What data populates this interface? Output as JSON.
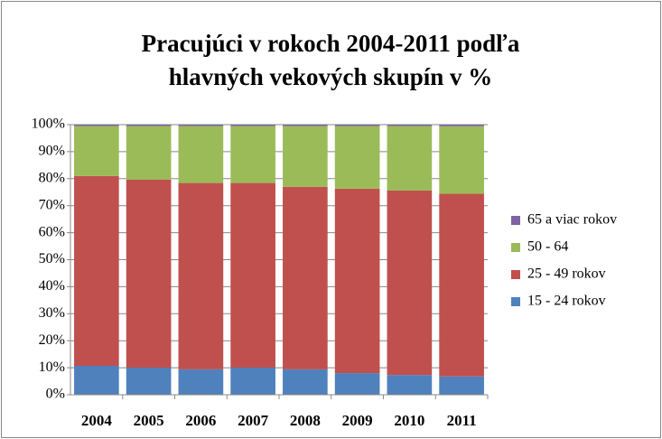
{
  "chart_data": {
    "type": "stacked_bar",
    "title": [
      "Pracujúci  v rokoch 2004-2011 podľa",
      "hlavných  vekových skupín  v %"
    ],
    "categories": [
      "2004",
      "2005",
      "2006",
      "2007",
      "2008",
      "2009",
      "2010",
      "2011"
    ],
    "series": [
      {
        "name": "15 - 24 rokov",
        "color": "#4f81bd",
        "values": [
          10.7,
          10,
          9.4,
          10,
          9.4,
          8,
          7.3,
          6.8
        ]
      },
      {
        "name": "25 - 49 rokov",
        "color": "#c0504d",
        "values": [
          70.3,
          69.7,
          69,
          68.4,
          67.6,
          68.3,
          68.3,
          67.6
        ]
      },
      {
        "name": "50 - 64",
        "color": "#9bbb59",
        "values": [
          18.5,
          19.8,
          21.1,
          21.1,
          22.5,
          23.2,
          23.9,
          25
        ]
      },
      {
        "name": "65 a viac rokov",
        "color": "#8064a2",
        "values": [
          0.5,
          0.5,
          0.5,
          0.5,
          0.5,
          0.5,
          0.5,
          0.6
        ]
      }
    ],
    "ylim": [
      0,
      100
    ],
    "yticks": [
      {
        "value": 0,
        "label": "0%"
      },
      {
        "value": 10,
        "label": "10%"
      },
      {
        "value": 20,
        "label": "20%"
      },
      {
        "value": 30,
        "label": "30%"
      },
      {
        "value": 40,
        "label": "40%"
      },
      {
        "value": 50,
        "label": "50%"
      },
      {
        "value": 60,
        "label": "60%"
      },
      {
        "value": 70,
        "label": "70%"
      },
      {
        "value": 80,
        "label": "80%"
      },
      {
        "value": 90,
        "label": "90%"
      },
      {
        "value": 100,
        "label": "100%"
      }
    ],
    "grid": true,
    "legend": "right"
  }
}
